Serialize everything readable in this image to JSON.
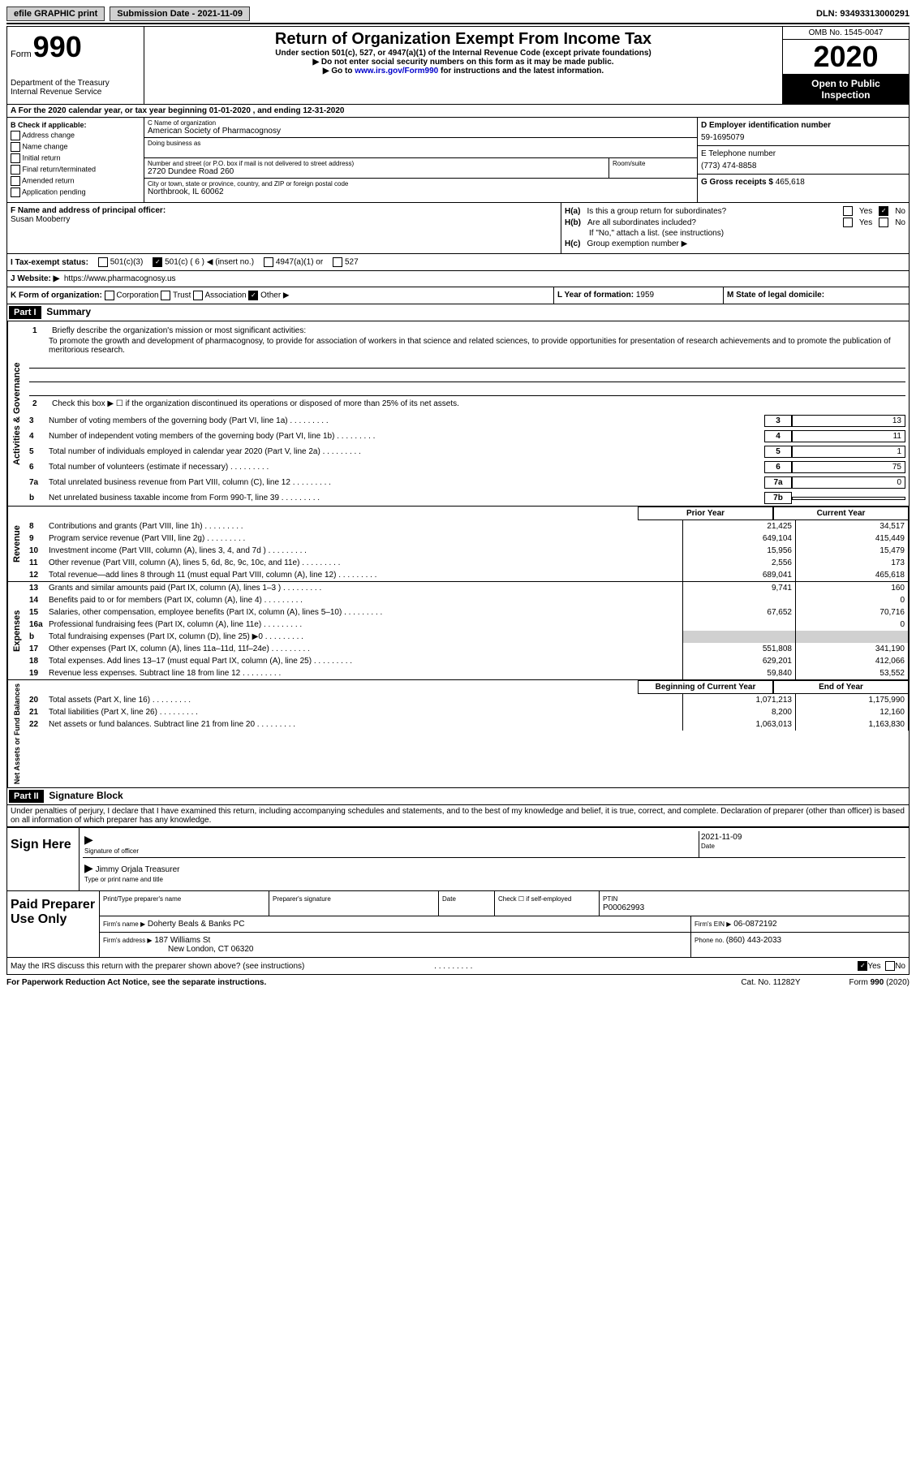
{
  "topbar": {
    "efile": "efile GRAPHIC print",
    "submission_label": "Submission Date - ",
    "submission_date": "2021-11-09",
    "dln_label": "DLN: ",
    "dln": "93493313000291"
  },
  "header": {
    "form_word": "Form",
    "form_num": "990",
    "dept1": "Department of the Treasury",
    "dept2": "Internal Revenue Service",
    "title": "Return of Organization Exempt From Income Tax",
    "subtitle": "Under section 501(c), 527, or 4947(a)(1) of the Internal Revenue Code (except private foundations)",
    "instr1": "▶ Do not enter social security numbers on this form as it may be made public.",
    "instr2_pre": "▶ Go to ",
    "instr2_link": "www.irs.gov/Form990",
    "instr2_post": " for instructions and the latest information.",
    "omb": "OMB No. 1545-0047",
    "year": "2020",
    "inspection": "Open to Public Inspection"
  },
  "period": {
    "label_a": "A For the 2020 calendar year, or tax year beginning ",
    "begin": "01-01-2020",
    "mid": " , and ending ",
    "end": "12-31-2020"
  },
  "box_b": {
    "title": "B Check if applicable:",
    "addr": "Address change",
    "name": "Name change",
    "initial": "Initial return",
    "final": "Final return/terminated",
    "amended": "Amended return",
    "app": "Application pending"
  },
  "box_c": {
    "label": "C Name of organization",
    "org": "American Society of Pharmacognosy",
    "dba_label": "Doing business as",
    "addr_label": "Number and street (or P.O. box if mail is not delivered to street address)",
    "room_label": "Room/suite",
    "addr": "2720 Dundee Road 260",
    "city_label": "City or town, state or province, country, and ZIP or foreign postal code",
    "city": "Northbrook, IL  60062"
  },
  "box_d": {
    "ein_label": "D Employer identification number",
    "ein": "59-1695079",
    "phone_label": "E Telephone number",
    "phone": "(773) 474-8858",
    "gross_label": "G Gross receipts $ ",
    "gross": "465,618"
  },
  "box_f": {
    "label": "F Name and address of principal officer:",
    "name": "Susan Mooberry"
  },
  "box_h": {
    "ha_label": "H(a)",
    "ha_text": "Is this a group return for subordinates?",
    "hb_label": "H(b)",
    "hb_text": "Are all subordinates included?",
    "hb_note": "If \"No,\" attach a list. (see instructions)",
    "hc_label": "H(c)",
    "hc_text": "Group exemption number ▶",
    "yes": "Yes",
    "no": "No"
  },
  "box_i": {
    "label": "I   Tax-exempt status:",
    "c3": "501(c)(3)",
    "c_insert": "501(c) ( 6 ) ◀ (insert no.)",
    "a1": "4947(a)(1) or",
    "527": "527"
  },
  "box_j": {
    "label": "J   Website: ▶",
    "url": "https://www.pharmacognosy.us"
  },
  "box_k": {
    "label": "K Form of organization:",
    "corp": "Corporation",
    "trust": "Trust",
    "assoc": "Association",
    "other": "Other ▶",
    "l_label": "L Year of formation: ",
    "l_val": "1959",
    "m_label": "M State of legal domicile:"
  },
  "part1": {
    "header": "Part I",
    "title": "Summary",
    "l1_label": "1",
    "l1_text": "Briefly describe the organization's mission or most significant activities:",
    "mission": "To promote the growth and development of pharmacognosy, to provide for association of workers in that science and related sciences, to provide opportunities for presentation of research achievements and to promote the publication of meritorious research.",
    "l2_label": "2",
    "l2_text": "Check this box ▶ ☐ if the organization discontinued its operations or disposed of more than 25% of its net assets.",
    "vlabel_gov": "Activities & Governance",
    "vlabel_rev": "Revenue",
    "vlabel_exp": "Expenses",
    "vlabel_net": "Net Assets or Fund Balances",
    "prior_hdr": "Prior Year",
    "curr_hdr": "Current Year",
    "begin_hdr": "Beginning of Current Year",
    "end_hdr": "End of Year",
    "lines_gov": [
      {
        "n": "3",
        "t": "Number of voting members of the governing body (Part VI, line 1a)",
        "box": "3",
        "v": "13"
      },
      {
        "n": "4",
        "t": "Number of independent voting members of the governing body (Part VI, line 1b)",
        "box": "4",
        "v": "11"
      },
      {
        "n": "5",
        "t": "Total number of individuals employed in calendar year 2020 (Part V, line 2a)",
        "box": "5",
        "v": "1"
      },
      {
        "n": "6",
        "t": "Total number of volunteers (estimate if necessary)",
        "box": "6",
        "v": "75"
      },
      {
        "n": "7a",
        "t": "Total unrelated business revenue from Part VIII, column (C), line 12",
        "box": "7a",
        "v": "0"
      },
      {
        "n": "b",
        "t": "Net unrelated business taxable income from Form 990-T, line 39",
        "box": "7b",
        "v": ""
      }
    ],
    "lines_rev": [
      {
        "n": "8",
        "t": "Contributions and grants (Part VIII, line 1h)",
        "p": "21,425",
        "c": "34,517"
      },
      {
        "n": "9",
        "t": "Program service revenue (Part VIII, line 2g)",
        "p": "649,104",
        "c": "415,449"
      },
      {
        "n": "10",
        "t": "Investment income (Part VIII, column (A), lines 3, 4, and 7d )",
        "p": "15,956",
        "c": "15,479"
      },
      {
        "n": "11",
        "t": "Other revenue (Part VIII, column (A), lines 5, 6d, 8c, 9c, 10c, and 11e)",
        "p": "2,556",
        "c": "173"
      },
      {
        "n": "12",
        "t": "Total revenue—add lines 8 through 11 (must equal Part VIII, column (A), line 12)",
        "p": "689,041",
        "c": "465,618"
      }
    ],
    "lines_exp": [
      {
        "n": "13",
        "t": "Grants and similar amounts paid (Part IX, column (A), lines 1–3 )",
        "p": "9,741",
        "c": "160"
      },
      {
        "n": "14",
        "t": "Benefits paid to or for members (Part IX, column (A), line 4)",
        "p": "",
        "c": "0"
      },
      {
        "n": "15",
        "t": "Salaries, other compensation, employee benefits (Part IX, column (A), lines 5–10)",
        "p": "67,652",
        "c": "70,716"
      },
      {
        "n": "16a",
        "t": "Professional fundraising fees (Part IX, column (A), line 11e)",
        "p": "",
        "c": "0"
      },
      {
        "n": "b",
        "t": "Total fundraising expenses (Part IX, column (D), line 25) ▶0",
        "p": "shaded",
        "c": "shaded"
      },
      {
        "n": "17",
        "t": "Other expenses (Part IX, column (A), lines 11a–11d, 11f–24e)",
        "p": "551,808",
        "c": "341,190"
      },
      {
        "n": "18",
        "t": "Total expenses. Add lines 13–17 (must equal Part IX, column (A), line 25)",
        "p": "629,201",
        "c": "412,066"
      },
      {
        "n": "19",
        "t": "Revenue less expenses. Subtract line 18 from line 12",
        "p": "59,840",
        "c": "53,552"
      }
    ],
    "lines_net": [
      {
        "n": "20",
        "t": "Total assets (Part X, line 16)",
        "p": "1,071,213",
        "c": "1,175,990"
      },
      {
        "n": "21",
        "t": "Total liabilities (Part X, line 26)",
        "p": "8,200",
        "c": "12,160"
      },
      {
        "n": "22",
        "t": "Net assets or fund balances. Subtract line 21 from line 20",
        "p": "1,063,013",
        "c": "1,163,830"
      }
    ]
  },
  "part2": {
    "header": "Part II",
    "title": "Signature Block",
    "declaration": "Under penalties of perjury, I declare that I have examined this return, including accompanying schedules and statements, and to the best of my knowledge and belief, it is true, correct, and complete. Declaration of preparer (other than officer) is based on all information of which preparer has any knowledge."
  },
  "sign": {
    "label": "Sign Here",
    "sig_officer": "Signature of officer",
    "date_label": "Date",
    "date": "2021-11-09",
    "name": "Jimmy Orjala Treasurer",
    "name_label": "Type or print name and title"
  },
  "paid": {
    "label": "Paid Preparer Use Only",
    "print_name": "Print/Type preparer's name",
    "prep_sig": "Preparer's signature",
    "date": "Date",
    "check_label": "Check ☐ if self-employed",
    "ptin_label": "PTIN",
    "ptin": "P00062993",
    "firm_name_label": "Firm's name    ▶",
    "firm_name": "Doherty Beals & Banks PC",
    "firm_ein_label": "Firm's EIN ▶",
    "firm_ein": "06-0872192",
    "firm_addr_label": "Firm's address ▶",
    "firm_addr1": "187 Williams St",
    "firm_addr2": "New London, CT  06320",
    "phone_label": "Phone no. ",
    "phone": "(860) 443-2033"
  },
  "footer": {
    "discuss": "May the IRS discuss this return with the preparer shown above? (see instructions)",
    "yes": "Yes",
    "no": "No",
    "paperwork": "For Paperwork Reduction Act Notice, see the separate instructions.",
    "cat": "Cat. No. 11282Y",
    "form": "Form 990 (2020)"
  }
}
